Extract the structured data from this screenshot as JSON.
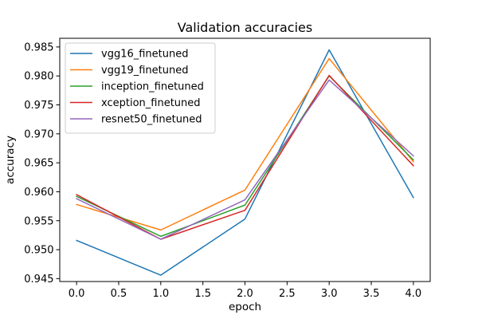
{
  "chart_data": {
    "type": "line",
    "title": "Validation accuracies",
    "xlabel": "epoch",
    "ylabel": "accuracy",
    "x": [
      0.0,
      1.0,
      2.0,
      3.0,
      4.0
    ],
    "xlim": [
      -0.2,
      4.2
    ],
    "ylim": [
      0.9445,
      0.9865
    ],
    "xticks": [
      0.0,
      0.5,
      1.0,
      1.5,
      2.0,
      2.5,
      3.0,
      3.5,
      4.0
    ],
    "xtick_labels": [
      "0.0",
      "0.5",
      "1.0",
      "1.5",
      "2.0",
      "2.5",
      "3.0",
      "3.5",
      "4.0"
    ],
    "yticks": [
      0.945,
      0.95,
      0.955,
      0.96,
      0.965,
      0.97,
      0.975,
      0.98,
      0.985
    ],
    "ytick_labels": [
      "0.945",
      "0.950",
      "0.955",
      "0.960",
      "0.965",
      "0.970",
      "0.975",
      "0.980",
      "0.985"
    ],
    "grid": false,
    "legend_position": "top-left",
    "series": [
      {
        "name": "vgg16_finetuned",
        "color": "#1f77b4",
        "values": [
          0.9516,
          0.9456,
          0.9553,
          0.9845,
          0.959
        ]
      },
      {
        "name": "vgg19_finetuned",
        "color": "#ff7f0e",
        "values": [
          0.9578,
          0.9534,
          0.9603,
          0.983,
          0.9652
        ]
      },
      {
        "name": "inception_finetuned",
        "color": "#2ca02c",
        "values": [
          0.9592,
          0.9523,
          0.9577,
          0.98,
          0.9655
        ]
      },
      {
        "name": "xception_finetuned",
        "color": "#d62728",
        "values": [
          0.9595,
          0.9518,
          0.9568,
          0.9801,
          0.9645
        ]
      },
      {
        "name": "resnet50_finetuned",
        "color": "#9467bd",
        "values": [
          0.9588,
          0.9518,
          0.9586,
          0.9793,
          0.9662
        ]
      }
    ]
  }
}
